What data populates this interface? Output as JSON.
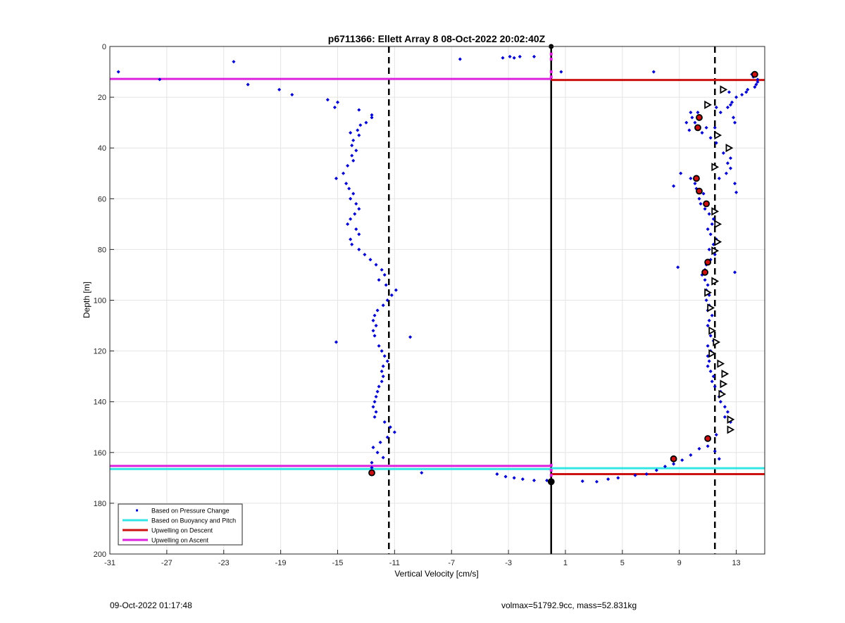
{
  "footer": {
    "left": "09-Oct-2022 01:17:48",
    "right": "volmax=51792.9cc, mass=52.831kg"
  },
  "colors": {
    "pressure": "#0000cc",
    "buoyancy": "#33e6e6",
    "descent": "#cc1111",
    "ascent": "#dd22dd",
    "grid": "#e4e4e4"
  },
  "chart_data": {
    "type": "scatter",
    "title": "p6711366: Ellett Array 8 08-Oct-2022 20:02:40Z",
    "xlabel": "Vertical Velocity [cm/s]",
    "ylabel": "Depth [m]",
    "xlim": [
      -31,
      15
    ],
    "ylim": [
      0,
      200
    ],
    "y_reversed": true,
    "grid": true,
    "legend_position": "bottom-left",
    "xticks": [
      -31,
      -27,
      -23,
      -19,
      -15,
      -11,
      -7,
      -3,
      1,
      5,
      9,
      13
    ],
    "yticks": [
      0,
      20,
      40,
      60,
      80,
      100,
      120,
      140,
      160,
      180,
      200
    ],
    "legend": [
      {
        "label": "Based on Pressure Change",
        "kind": "dot",
        "color": "#0000cc"
      },
      {
        "label": "Based on Buoyancy and Pitch",
        "kind": "line",
        "color": "#33e6e6"
      },
      {
        "label": "Upwelling on Descent",
        "kind": "line",
        "color": "#cc1111"
      },
      {
        "label": "Upwelling on Ascent",
        "kind": "line",
        "color": "#dd22dd"
      }
    ],
    "reference_lines": {
      "zero_solid_x": 0,
      "dashed_x": [
        -11.4,
        11.5
      ]
    },
    "upwelling_lines": [
      {
        "series": "Upwelling on Ascent",
        "depth": 12.8,
        "x_from": -31,
        "x_to": 0
      },
      {
        "series": "Upwelling on Descent",
        "depth": 13.2,
        "x_from": 0,
        "x_to": 15
      },
      {
        "series": "Upwelling on Ascent",
        "depth": 165.3,
        "x_from": -31,
        "x_to": 0
      },
      {
        "series": "Based on Buoyancy and Pitch",
        "depth": 166.5,
        "x_from": -31,
        "x_to": 0
      },
      {
        "series": "Based on Buoyancy and Pitch",
        "depth": 166.2,
        "x_from": 0,
        "x_to": 15
      },
      {
        "series": "Upwelling on Descent",
        "depth": 168.5,
        "x_from": 0,
        "x_to": 15
      }
    ],
    "series": [
      {
        "name": "Based on Pressure Change",
        "points": [
          [
            -30.4,
            10
          ],
          [
            -22.3,
            6
          ],
          [
            -27.5,
            13
          ],
          [
            -21.3,
            15
          ],
          [
            -19.1,
            17
          ],
          [
            -18.2,
            19
          ],
          [
            -15.7,
            21
          ],
          [
            -15.0,
            22
          ],
          [
            -15.2,
            24
          ],
          [
            -13.5,
            25
          ],
          [
            -12.6,
            27
          ],
          [
            -12.6,
            28
          ],
          [
            -13.0,
            30
          ],
          [
            -13.4,
            31
          ],
          [
            -13.6,
            33
          ],
          [
            -14.1,
            34
          ],
          [
            -13.5,
            35
          ],
          [
            -13.9,
            37
          ],
          [
            -14.0,
            39
          ],
          [
            -13.7,
            41
          ],
          [
            -14.0,
            43
          ],
          [
            -13.9,
            45
          ],
          [
            -14.3,
            47
          ],
          [
            -14.6,
            50
          ],
          [
            -15.1,
            52
          ],
          [
            -14.4,
            54
          ],
          [
            -14.2,
            56
          ],
          [
            -13.9,
            58
          ],
          [
            -14.1,
            60
          ],
          [
            -13.7,
            62
          ],
          [
            -13.5,
            64
          ],
          [
            -13.8,
            66
          ],
          [
            -14.1,
            68
          ],
          [
            -14.3,
            70
          ],
          [
            -13.7,
            72
          ],
          [
            -13.5,
            74
          ],
          [
            -14.1,
            76
          ],
          [
            -14.0,
            78
          ],
          [
            -13.5,
            80
          ],
          [
            -13.1,
            82
          ],
          [
            -12.7,
            84
          ],
          [
            -12.3,
            86
          ],
          [
            -11.9,
            88
          ],
          [
            -11.7,
            90
          ],
          [
            -12.1,
            92
          ],
          [
            -11.6,
            94
          ],
          [
            -10.9,
            96
          ],
          [
            -11.2,
            98
          ],
          [
            -11.5,
            100
          ],
          [
            -11.8,
            102
          ],
          [
            -12.2,
            104
          ],
          [
            -12.4,
            106
          ],
          [
            -12.5,
            108
          ],
          [
            -12.3,
            110
          ],
          [
            -12.5,
            112
          ],
          [
            -12.4,
            114
          ],
          [
            -15.1,
            116.5
          ],
          [
            -9.9,
            114.5
          ],
          [
            -12.1,
            118
          ],
          [
            -11.9,
            120
          ],
          [
            -11.7,
            122
          ],
          [
            -11.5,
            124
          ],
          [
            -11.8,
            126
          ],
          [
            -11.9,
            128
          ],
          [
            -11.8,
            130
          ],
          [
            -11.9,
            132
          ],
          [
            -12.1,
            134
          ],
          [
            -12.2,
            136
          ],
          [
            -12.3,
            138
          ],
          [
            -12.4,
            140
          ],
          [
            -12.5,
            142
          ],
          [
            -12.3,
            144
          ],
          [
            -12.4,
            146
          ],
          [
            -11.7,
            148
          ],
          [
            -11.3,
            150
          ],
          [
            -11.0,
            152
          ],
          [
            -11.5,
            154
          ],
          [
            -12.0,
            156
          ],
          [
            -12.5,
            158
          ],
          [
            -12.2,
            160
          ],
          [
            -11.8,
            162
          ],
          [
            -12.6,
            164
          ],
          [
            -12.6,
            166
          ],
          [
            -9.1,
            168
          ],
          [
            -3.8,
            168.5
          ],
          [
            -2.6,
            170
          ],
          [
            -3.2,
            169.5
          ],
          [
            -2.0,
            170.5
          ],
          [
            -1.2,
            171
          ],
          [
            -0.3,
            171
          ],
          [
            2.2,
            171.3
          ],
          [
            3.2,
            171.5
          ],
          [
            4.0,
            170.5
          ],
          [
            4.7,
            170
          ],
          [
            5.9,
            169
          ],
          [
            6.7,
            168.5
          ],
          [
            7.4,
            167
          ],
          [
            8.0,
            165.5
          ],
          [
            8.6,
            164.5
          ],
          [
            9.2,
            163
          ],
          [
            9.8,
            161
          ],
          [
            10.4,
            158.5
          ],
          [
            11.0,
            157.5
          ],
          [
            11.5,
            159.5
          ],
          [
            11.8,
            162.5
          ],
          [
            11.0,
            155
          ],
          [
            11.6,
            153
          ],
          [
            12.5,
            151
          ],
          [
            12.6,
            148
          ],
          [
            12.2,
            146
          ],
          [
            12.4,
            144
          ],
          [
            12.2,
            142
          ],
          [
            11.9,
            140
          ],
          [
            11.8,
            138
          ],
          [
            11.9,
            136
          ],
          [
            11.5,
            134
          ],
          [
            11.3,
            132
          ],
          [
            11.4,
            130
          ],
          [
            11.2,
            128
          ],
          [
            11.0,
            126
          ],
          [
            11.1,
            124
          ],
          [
            11.0,
            122
          ],
          [
            11.2,
            120
          ],
          [
            11.0,
            118
          ],
          [
            11.4,
            116
          ],
          [
            11.2,
            114
          ],
          [
            11.3,
            112
          ],
          [
            11.0,
            110
          ],
          [
            11.1,
            108
          ],
          [
            11.3,
            106
          ],
          [
            11.0,
            104
          ],
          [
            11.1,
            102
          ],
          [
            10.9,
            100
          ],
          [
            11.1,
            98
          ],
          [
            10.9,
            96
          ],
          [
            11.0,
            94
          ],
          [
            10.8,
            92
          ],
          [
            10.6,
            90
          ],
          [
            8.9,
            87
          ],
          [
            12.9,
            89
          ],
          [
            10.8,
            88
          ],
          [
            10.9,
            86
          ],
          [
            11.2,
            84
          ],
          [
            11.5,
            82
          ],
          [
            11.1,
            80
          ],
          [
            11.4,
            78
          ],
          [
            11.6,
            76
          ],
          [
            11.2,
            74
          ],
          [
            11.0,
            72
          ],
          [
            11.3,
            70
          ],
          [
            11.4,
            68
          ],
          [
            11.1,
            66
          ],
          [
            10.8,
            64
          ],
          [
            10.5,
            62
          ],
          [
            10.4,
            60
          ],
          [
            10.7,
            58
          ],
          [
            10.2,
            56
          ],
          [
            8.6,
            55
          ],
          [
            13.0,
            57.5
          ],
          [
            12.9,
            54
          ],
          [
            10.1,
            54
          ],
          [
            9.1,
            50
          ],
          [
            9.8,
            52
          ],
          [
            11.8,
            52
          ],
          [
            12.3,
            50
          ],
          [
            12.6,
            48
          ],
          [
            12.4,
            46
          ],
          [
            12.6,
            44
          ],
          [
            12.1,
            42
          ],
          [
            12.5,
            40
          ],
          [
            11.6,
            38
          ],
          [
            11.2,
            36
          ],
          [
            10.6,
            34
          ],
          [
            10.9,
            32
          ],
          [
            9.7,
            33
          ],
          [
            11.5,
            32
          ],
          [
            10.1,
            30
          ],
          [
            9.5,
            30
          ],
          [
            9.9,
            28
          ],
          [
            10.3,
            26
          ],
          [
            9.8,
            26
          ],
          [
            11.9,
            26
          ],
          [
            12.4,
            24
          ],
          [
            12.7,
            22
          ],
          [
            13.0,
            20
          ],
          [
            13.4,
            19
          ],
          [
            13.7,
            18
          ],
          [
            14.3,
            16
          ],
          [
            14.5,
            14
          ],
          [
            14.2,
            12
          ],
          [
            14.1,
            11
          ],
          [
            14.5,
            13
          ],
          [
            14.4,
            15
          ],
          [
            13.8,
            17
          ],
          [
            12.8,
            28
          ],
          [
            12.9,
            30
          ],
          [
            12.6,
            23
          ],
          [
            12.5,
            18
          ],
          [
            11.6,
            24
          ],
          [
            0.7,
            10
          ],
          [
            7.2,
            10
          ],
          [
            -2.2,
            4
          ],
          [
            -2.6,
            4.5
          ],
          [
            -2.9,
            4
          ],
          [
            -1.2,
            4
          ],
          [
            -3.4,
            4.5
          ],
          [
            -6.4,
            5
          ]
        ]
      }
    ],
    "markers": {
      "red_dots": [
        [
          14.3,
          11
        ],
        [
          10.4,
          28
        ],
        [
          10.3,
          32
        ],
        [
          10.2,
          52
        ],
        [
          10.4,
          57
        ],
        [
          10.9,
          62
        ],
        [
          11.0,
          85
        ],
        [
          10.8,
          89
        ],
        [
          11.0,
          154.5
        ],
        [
          8.6,
          162.5
        ],
        [
          -12.6,
          168
        ],
        [
          0,
          171.5
        ]
      ],
      "open_triangles": [
        [
          12.1,
          17
        ],
        [
          11.0,
          23
        ],
        [
          11.7,
          35
        ],
        [
          12.5,
          40
        ],
        [
          11.5,
          47.5
        ],
        [
          11.5,
          65
        ],
        [
          11.7,
          70
        ],
        [
          11.7,
          77
        ],
        [
          11.5,
          80.5
        ],
        [
          11.5,
          92.5
        ],
        [
          11.0,
          97
        ],
        [
          11.2,
          103
        ],
        [
          11.3,
          112
        ],
        [
          11.6,
          116.5
        ],
        [
          11.3,
          121
        ],
        [
          11.9,
          125
        ],
        [
          12.2,
          129
        ],
        [
          12.1,
          133
        ],
        [
          12.0,
          137
        ],
        [
          12.6,
          147
        ],
        [
          12.6,
          151
        ]
      ]
    }
  }
}
